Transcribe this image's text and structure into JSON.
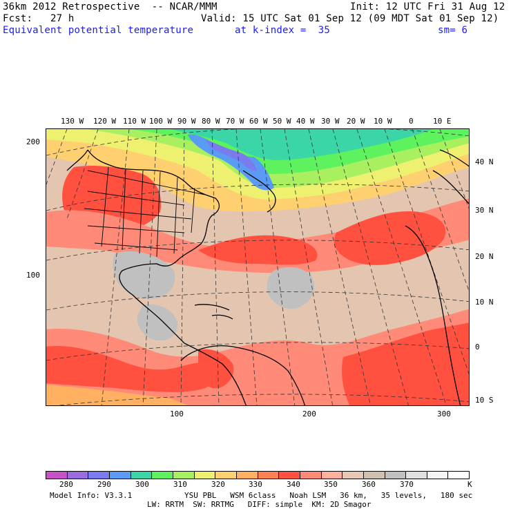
{
  "header": {
    "title": "36km 2012 Retrospective  -- NCAR/MMM",
    "init": "Init: 12 UTC Fri 31 Aug 12",
    "forecast": "Fcst:   27 h",
    "valid": "Valid: 15 UTC Sat 01 Sep 12 (09 MDT Sat 01 Sep 12)",
    "field": "Equivalent potential temperature",
    "level": "at k-index =  35",
    "smoothing": "sm= 6"
  },
  "map": {
    "longitude_labels": [
      "130 W",
      "120 W",
      "110 W",
      "100 W",
      "90 W",
      "80 W",
      "70 W",
      "60 W",
      "50 W",
      "40 W",
      "30 W",
      "20 W",
      "10 W",
      "0",
      "10 E"
    ],
    "latitude_labels": [
      "40 N",
      "30 N",
      "20 N",
      "10 N",
      "0",
      "10 S"
    ],
    "grid_y_labels": [
      "200",
      "100"
    ],
    "grid_x_labels": [
      "100",
      "200",
      "300"
    ]
  },
  "colorbar": {
    "labels": [
      "280",
      "290",
      "300",
      "310",
      "320",
      "330",
      "340",
      "350",
      "360",
      "370"
    ],
    "unit": "K",
    "colors": [
      "#c853c8",
      "#9a6ce0",
      "#7b7bf0",
      "#5a9bf5",
      "#3ad6a8",
      "#5ef25e",
      "#a8f060",
      "#eef070",
      "#ffd070",
      "#ffb060",
      "#ff8050",
      "#ff5040",
      "#ff8a78",
      "#ffb0a0",
      "#e6c8b4",
      "#cfc0b0",
      "#c0c0c0",
      "#e0e0e0",
      "#f4f4f4",
      "#ffffff"
    ]
  },
  "footer": {
    "model_info": "Model Info: V3.3.1",
    "physics1": "YSU PBL   WSM 6class   Noah LSM   36 km,   35 levels,   180 sec",
    "physics2": "LW: RRTM  SW: RRTMG   DIFF: simple  KM: 2D Smagor"
  }
}
